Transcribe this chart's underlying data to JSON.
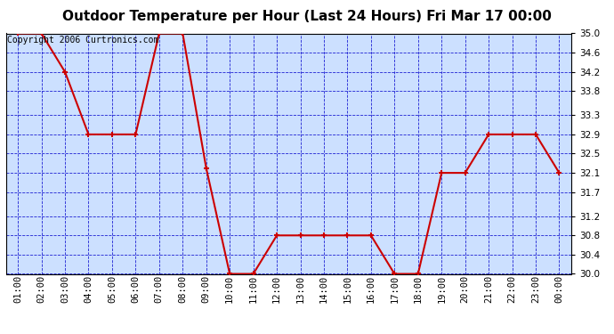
{
  "title": "Outdoor Temperature per Hour (Last 24 Hours) Fri Mar 17 00:00",
  "copyright_text": "Copyright 2006 Curtronics.com",
  "x_labels": [
    "01:00",
    "02:00",
    "03:00",
    "04:00",
    "05:00",
    "06:00",
    "07:00",
    "08:00",
    "09:00",
    "10:00",
    "11:00",
    "12:00",
    "13:00",
    "14:00",
    "15:00",
    "16:00",
    "17:00",
    "18:00",
    "19:00",
    "20:00",
    "21:00",
    "22:00",
    "23:00",
    "00:00"
  ],
  "y_values": [
    35.0,
    35.0,
    34.2,
    32.9,
    32.9,
    32.9,
    35.0,
    35.0,
    32.2,
    30.0,
    30.0,
    30.8,
    30.8,
    30.8,
    30.8,
    30.8,
    30.0,
    30.0,
    32.1,
    32.1,
    32.9,
    32.9,
    32.9,
    32.1
  ],
  "y_min": 30.0,
  "y_max": 35.0,
  "y_ticks": [
    30.0,
    30.4,
    30.8,
    31.2,
    31.7,
    32.1,
    32.5,
    32.9,
    33.3,
    33.8,
    34.2,
    34.6,
    35.0
  ],
  "line_color": "#cc0000",
  "marker_color": "#cc0000",
  "bg_color": "#cce0ff",
  "grid_color": "#0000cc",
  "title_fontsize": 11,
  "copyright_fontsize": 7,
  "tick_fontsize": 7.5,
  "outer_bg_color": "#ffffff"
}
